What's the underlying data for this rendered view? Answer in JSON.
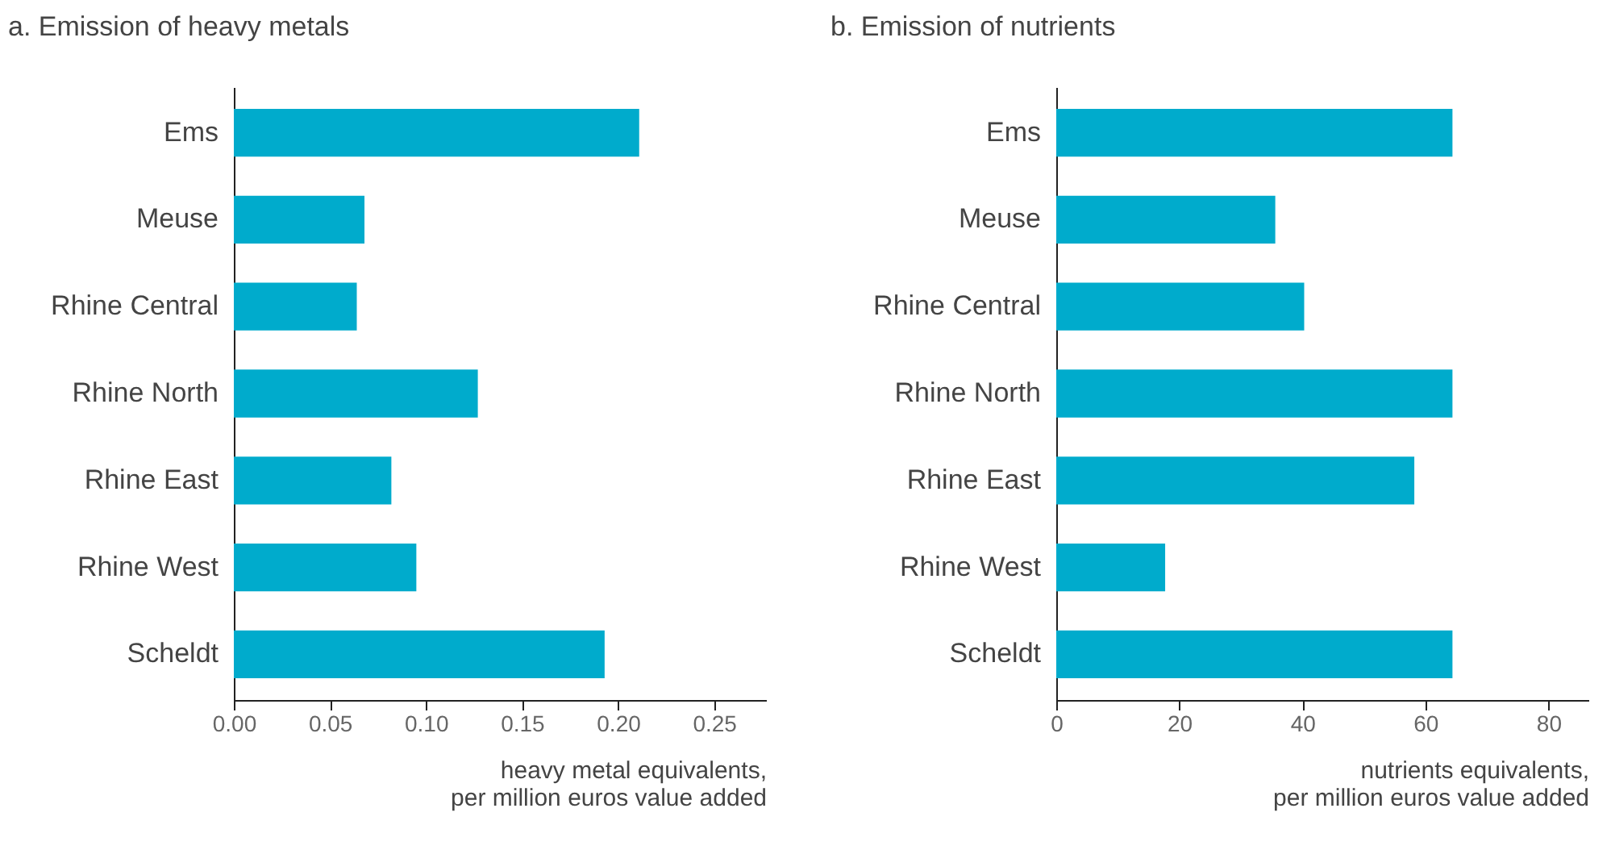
{
  "chart_data": [
    {
      "type": "bar",
      "orientation": "horizontal",
      "title": "a. Emission of heavy metals",
      "xlabel": "heavy metal equivalents,\nper million euros value added",
      "categories": [
        "Ems",
        "Meuse",
        "Rhine Central",
        "Rhine North",
        "Rhine East",
        "Rhine West",
        "Scheldt"
      ],
      "values": [
        0.211,
        0.068,
        0.064,
        0.127,
        0.082,
        0.095,
        0.193
      ],
      "color": "#00abcc",
      "xlim": [
        0,
        0.277
      ],
      "xticks": [
        {
          "value": 0,
          "label": "0.00"
        },
        {
          "value": 0.05,
          "label": "0.05"
        },
        {
          "value": 0.1,
          "label": "0.10"
        },
        {
          "value": 0.15,
          "label": "0.15"
        },
        {
          "value": 0.2,
          "label": "0.20"
        },
        {
          "value": 0.25,
          "label": "0.25"
        }
      ],
      "grid": false
    },
    {
      "type": "bar",
      "orientation": "horizontal",
      "title": "b. Emission of nutrients",
      "xlabel": "nutrients equivalents,\nper million euros value added",
      "categories": [
        "Ems",
        "Meuse",
        "Rhine Central",
        "Rhine North",
        "Rhine East",
        "Rhine West",
        "Scheldt"
      ],
      "values": [
        64.4,
        35.6,
        40.3,
        64.4,
        58.2,
        17.7,
        64.4
      ],
      "color": "#00abcc",
      "xlim": [
        0,
        86.5
      ],
      "xticks": [
        0,
        20,
        40,
        60,
        80
      ],
      "grid": false
    }
  ]
}
